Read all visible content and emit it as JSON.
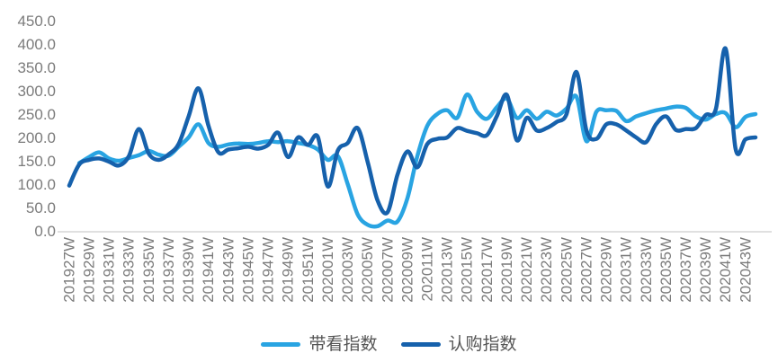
{
  "chart_data": {
    "type": "line",
    "title": "",
    "x_unit": "week",
    "x": [
      "201927W",
      "201928W",
      "201929W",
      "201930W",
      "201931W",
      "201932W",
      "201933W",
      "201934W",
      "201935W",
      "201936W",
      "201937W",
      "201938W",
      "201939W",
      "201940W",
      "201941W",
      "201942W",
      "201943W",
      "201944W",
      "201945W",
      "201946W",
      "201947W",
      "201948W",
      "201949W",
      "201950W",
      "201951W",
      "201952W",
      "202001W",
      "202002W",
      "202003W",
      "202004W",
      "202005W",
      "202006W",
      "202007W",
      "202008W",
      "202009W",
      "202010W",
      "202011W",
      "202012W",
      "202013W",
      "202014W",
      "202015W",
      "202016W",
      "202017W",
      "202018W",
      "202019W",
      "202020W",
      "202021W",
      "202022W",
      "202023W",
      "202024W",
      "202025W",
      "202026W",
      "202027W",
      "202028W",
      "202029W",
      "202030W",
      "202031W",
      "202032W",
      "202033W",
      "202034W",
      "202035W",
      "202036W",
      "202037W",
      "202038W",
      "202039W",
      "202040W",
      "202041W",
      "202042W",
      "202043W",
      "202044W"
    ],
    "x_tick_every": 2,
    "x_tick_labels_shown": [
      "201927W",
      "201929W",
      "201931W",
      "201933W",
      "201935W",
      "201937W",
      "201939W",
      "201941W",
      "201943W",
      "201945W",
      "201947W",
      "201949W",
      "201951W",
      "202001W",
      "202003W",
      "202005W",
      "202007W",
      "202009W",
      "202011W",
      "202013W",
      "202015W",
      "202017W",
      "202019W",
      "202021W",
      "202023W",
      "202025W",
      "202027W",
      "202029W",
      "202031W",
      "202033W",
      "202035W",
      "202037W",
      "202039W",
      "202041W",
      "202043W"
    ],
    "ylim": [
      0,
      450
    ],
    "y_tick_step": 50,
    "y_tick_labels": [
      "0.0",
      "50.0",
      "100.0",
      "150.0",
      "200.0",
      "250.0",
      "300.0",
      "350.0",
      "400.0",
      "450.0"
    ],
    "grid": false,
    "legend_position": "bottom",
    "series": [
      {
        "name": "带看指数",
        "color": "#29A4E2",
        "values": [
          null,
          145,
          158,
          168,
          155,
          150,
          156,
          162,
          171,
          163,
          161,
          180,
          200,
          228,
          188,
          180,
          185,
          187,
          186,
          188,
          192,
          190,
          192,
          188,
          184,
          174,
          152,
          160,
          100,
          35,
          13,
          10,
          22,
          20,
          70,
          160,
          225,
          250,
          258,
          242,
          292,
          255,
          240,
          265,
          283,
          242,
          258,
          240,
          255,
          247,
          262,
          287,
          192,
          255,
          258,
          257,
          235,
          245,
          252,
          258,
          262,
          266,
          263,
          245,
          238,
          250,
          252,
          222,
          244,
          250
        ]
      },
      {
        "name": "认购指数",
        "color": "#1661AC",
        "values": [
          97,
          142,
          152,
          155,
          148,
          140,
          160,
          218,
          165,
          152,
          164,
          186,
          245,
          305,
          225,
          168,
          174,
          177,
          180,
          176,
          184,
          210,
          158,
          200,
          184,
          201,
          95,
          172,
          188,
          220,
          148,
          65,
          40,
          120,
          170,
          136,
          186,
          197,
          200,
          220,
          214,
          209,
          205,
          246,
          291,
          194,
          242,
          215,
          220,
          233,
          250,
          340,
          215,
          197,
          228,
          228,
          215,
          200,
          190,
          228,
          245,
          216,
          218,
          220,
          248,
          260,
          390,
          175,
          196,
          200
        ]
      }
    ]
  },
  "colors": {
    "background": "#ffffff",
    "axis_line": "#d6d6d6",
    "tick_text": "#7b7b7b",
    "legend_text": "#555555"
  }
}
